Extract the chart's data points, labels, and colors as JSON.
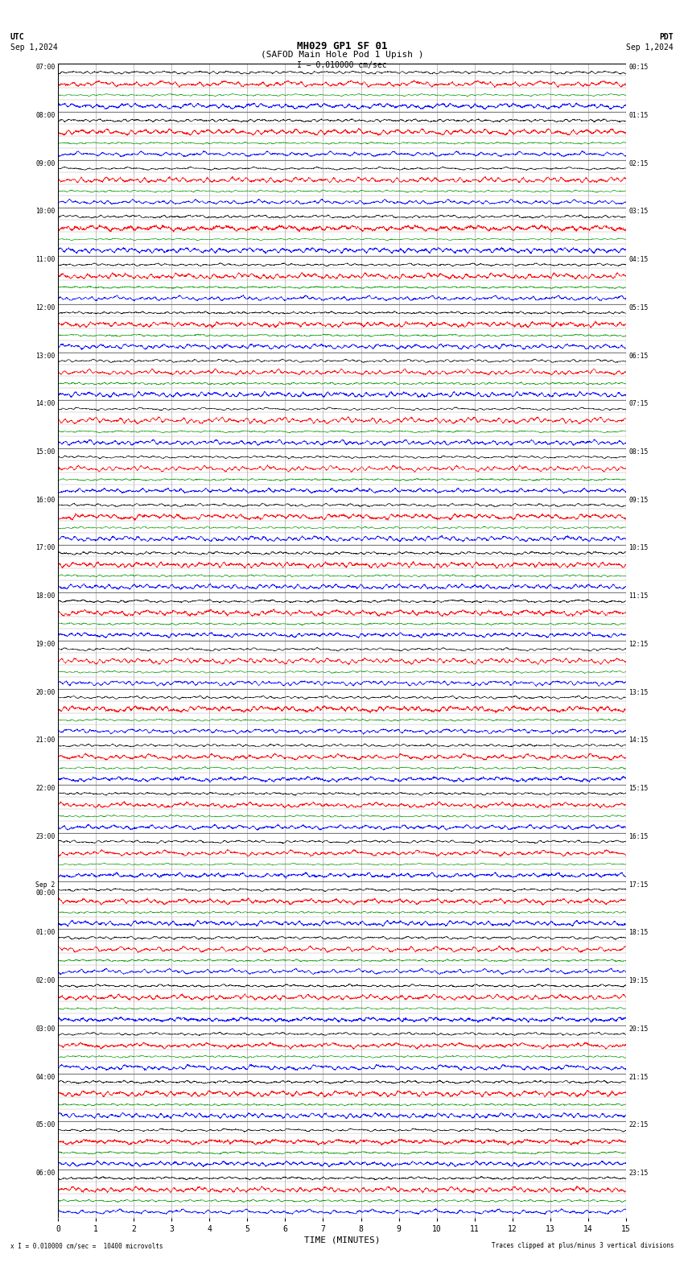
{
  "title_line1": "MH029 GP1 SF 01",
  "title_line2": "(SAFOD Main Hole Pod 1 Upish )",
  "scale_label": "I = 0.010000 cm/sec",
  "utc_label": "UTC",
  "utc_date": "Sep 1,2024",
  "pdt_label": "PDT",
  "pdt_date": "Sep 1,2024",
  "xlabel": "TIME (MINUTES)",
  "bottom_left": "x I = 0.010000 cm/sec =  10400 microvolts",
  "bottom_right": "Traces clipped at plus/minus 3 vertical divisions",
  "xlim": [
    0,
    15
  ],
  "xticks": [
    0,
    1,
    2,
    3,
    4,
    5,
    6,
    7,
    8,
    9,
    10,
    11,
    12,
    13,
    14,
    15
  ],
  "bg_color": "#ffffff",
  "grid_color": "#aaaaaa",
  "trace_colors": [
    "#000000",
    "#ff0000",
    "#009900",
    "#0000ff"
  ],
  "left_times": [
    "07:00",
    "08:00",
    "09:00",
    "10:00",
    "11:00",
    "12:00",
    "13:00",
    "14:00",
    "15:00",
    "16:00",
    "17:00",
    "18:00",
    "19:00",
    "20:00",
    "21:00",
    "22:00",
    "23:00",
    "Sep 2\n00:00",
    "01:00",
    "02:00",
    "03:00",
    "04:00",
    "05:00",
    "06:00"
  ],
  "right_times": [
    "00:15",
    "01:15",
    "02:15",
    "03:15",
    "04:15",
    "05:15",
    "06:15",
    "07:15",
    "08:15",
    "09:15",
    "10:15",
    "11:15",
    "12:15",
    "13:15",
    "14:15",
    "15:15",
    "16:15",
    "17:15",
    "18:15",
    "19:15",
    "20:15",
    "21:15",
    "22:15",
    "23:15"
  ],
  "n_rows": 24,
  "traces_per_row": 4,
  "fig_width": 8.5,
  "fig_height": 15.84
}
